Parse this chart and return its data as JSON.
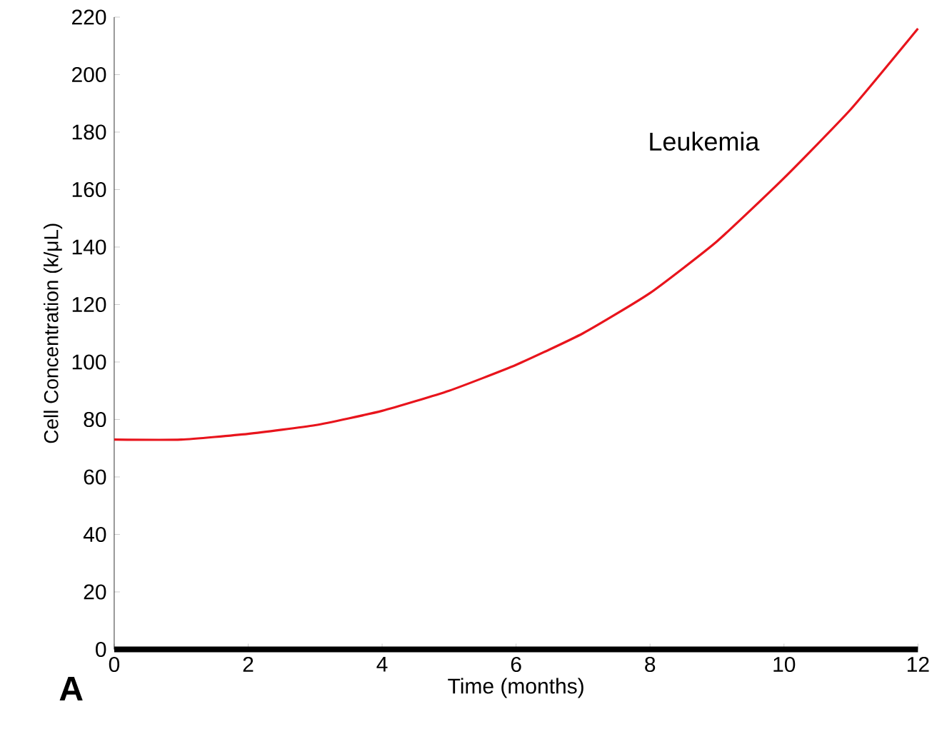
{
  "chart_data": {
    "type": "line",
    "xlabel": "Time (months)",
    "ylabel": "Cell Concentration (k/μL)",
    "x": [
      0,
      1,
      2,
      3,
      4,
      5,
      6,
      7,
      8,
      9,
      10,
      11,
      12
    ],
    "series": [
      {
        "name": "Leukemia",
        "color": "#e8141c",
        "values": [
          73,
          73,
          75,
          78,
          83,
          90,
          99,
          110,
          124,
          142,
          164,
          188,
          216
        ]
      }
    ],
    "xlim": [
      0,
      12
    ],
    "xticks": [
      0,
      2,
      4,
      6,
      8,
      10,
      12
    ],
    "ylim": [
      0,
      220
    ],
    "yticks": [
      0,
      20,
      40,
      60,
      80,
      100,
      120,
      140,
      160,
      180,
      200,
      220
    ],
    "annotations": [
      "A"
    ]
  }
}
